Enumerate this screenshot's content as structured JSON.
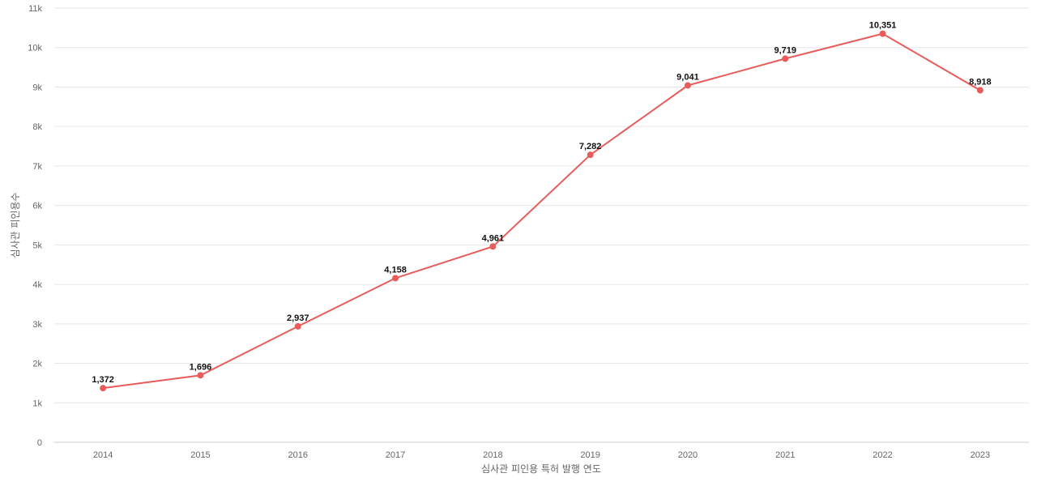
{
  "chart_data": {
    "type": "line",
    "title": "",
    "xlabel": "심사관 피인용 특허 발행 연도",
    "ylabel": "심사관 피인용수",
    "categories": [
      "2014",
      "2015",
      "2016",
      "2017",
      "2018",
      "2019",
      "2020",
      "2021",
      "2022",
      "2023"
    ],
    "series": [
      {
        "values": [
          1372,
          1696,
          2937,
          4158,
          4961,
          7282,
          9041,
          9719,
          10351,
          8918
        ],
        "data_labels": [
          "1,372",
          "1,696",
          "2,937",
          "4,158",
          "4,961",
          "7,282",
          "9,041",
          "9,719",
          "10,351",
          "8,918"
        ],
        "color": "#e85c5c"
      }
    ],
    "ylim": [
      0,
      11000
    ],
    "yticks": [
      0,
      1000,
      2000,
      3000,
      4000,
      5000,
      6000,
      7000,
      8000,
      9000,
      10000,
      11000
    ],
    "ytick_labels": [
      "0",
      "1k",
      "2k",
      "3k",
      "4k",
      "5k",
      "6k",
      "7k",
      "8k",
      "9k",
      "10k",
      "11k"
    ],
    "grid": true,
    "legend": "none",
    "colors": {
      "line": "#e85c5c",
      "grid": "#e6e6e6",
      "tick_text": "#666666",
      "data_label_text": "#111111"
    }
  }
}
